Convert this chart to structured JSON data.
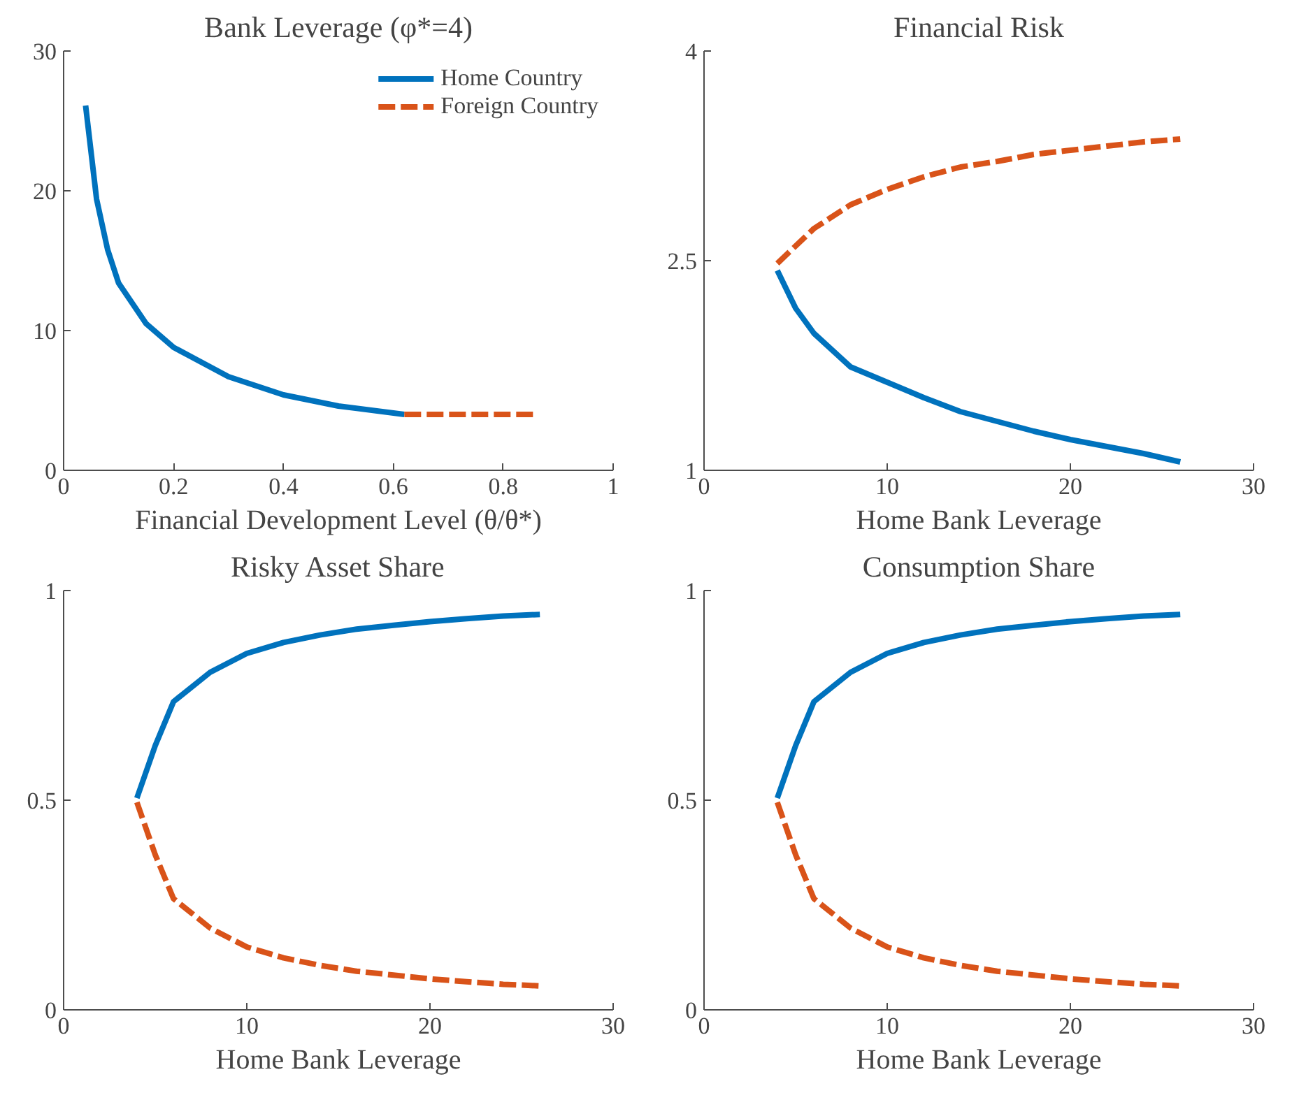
{
  "chart_data": [
    {
      "type": "line",
      "title": "Bank Leverage (φ*=4)",
      "xlabel": "Financial Development Level (θ/θ*)",
      "xlim": [
        0,
        1
      ],
      "xticks": [
        0,
        0.2,
        0.4,
        0.6,
        0.8,
        1
      ],
      "ylim": [
        0,
        30
      ],
      "yticks": [
        0,
        10,
        20,
        30
      ],
      "grid": false,
      "legend": "top right",
      "series": [
        {
          "name": "Home Country",
          "color": "#0072bd",
          "line_style": "solid",
          "x": [
            0.04,
            0.06,
            0.08,
            0.1,
            0.15,
            0.2,
            0.3,
            0.4,
            0.5,
            0.62
          ],
          "values": [
            26.1,
            19.4,
            15.8,
            13.4,
            10.5,
            8.8,
            6.7,
            5.4,
            4.6,
            4.0
          ]
        },
        {
          "name": "Foreign Country",
          "color": "#d95319",
          "line_style": "dashed",
          "x": [
            0.62,
            0.86
          ],
          "values": [
            4.0,
            4.0
          ]
        }
      ]
    },
    {
      "type": "line",
      "title": "Financial Risk",
      "xlabel": "Home Bank Leverage",
      "xlim": [
        0,
        30
      ],
      "xticks": [
        0,
        10,
        20,
        30
      ],
      "ylim": [
        1,
        4
      ],
      "yticks": [
        1,
        2.5,
        4
      ],
      "grid": false,
      "legend": false,
      "series": [
        {
          "color": "#0072bd",
          "line_style": "solid",
          "x": [
            4,
            5,
            6,
            8,
            10,
            12,
            14,
            16,
            18,
            20,
            22,
            24,
            26
          ],
          "values": [
            2.43,
            2.16,
            1.98,
            1.74,
            1.63,
            1.52,
            1.42,
            1.35,
            1.28,
            1.22,
            1.17,
            1.12,
            1.06
          ]
        },
        {
          "color": "#d95319",
          "line_style": "dashed",
          "x": [
            4,
            6,
            8,
            10,
            12,
            14,
            16,
            18,
            20,
            22,
            24,
            26
          ],
          "values": [
            2.48,
            2.73,
            2.9,
            3.01,
            3.1,
            3.17,
            3.21,
            3.26,
            3.29,
            3.32,
            3.35,
            3.37
          ]
        }
      ]
    },
    {
      "type": "line",
      "title": "Risky Asset Share",
      "xlabel": "Home Bank Leverage",
      "xlim": [
        0,
        30
      ],
      "xticks": [
        0,
        10,
        20,
        30
      ],
      "ylim": [
        0,
        1
      ],
      "yticks": [
        0,
        0.5,
        1
      ],
      "grid": false,
      "legend": false,
      "series": [
        {
          "color": "#0072bd",
          "line_style": "solid",
          "x": [
            4,
            5,
            6,
            8,
            10,
            12,
            14,
            16,
            18,
            20,
            22,
            24,
            26
          ],
          "values": [
            0.505,
            0.63,
            0.735,
            0.805,
            0.85,
            0.876,
            0.894,
            0.908,
            0.917,
            0.926,
            0.933,
            0.939,
            0.943
          ]
        },
        {
          "color": "#d95319",
          "line_style": "dashed",
          "x": [
            4,
            5,
            6,
            8,
            10,
            12,
            14,
            16,
            18,
            20,
            22,
            24,
            26
          ],
          "values": [
            0.495,
            0.37,
            0.265,
            0.195,
            0.15,
            0.124,
            0.106,
            0.092,
            0.083,
            0.074,
            0.067,
            0.061,
            0.057
          ]
        }
      ]
    },
    {
      "type": "line",
      "title": "Consumption Share",
      "xlabel": "Home Bank Leverage",
      "xlim": [
        0,
        30
      ],
      "xticks": [
        0,
        10,
        20,
        30
      ],
      "ylim": [
        0,
        1
      ],
      "yticks": [
        0,
        0.5,
        1
      ],
      "grid": false,
      "legend": false,
      "series": [
        {
          "color": "#0072bd",
          "line_style": "solid",
          "x": [
            4,
            5,
            6,
            8,
            10,
            12,
            14,
            16,
            18,
            20,
            22,
            24,
            26
          ],
          "values": [
            0.505,
            0.63,
            0.735,
            0.805,
            0.85,
            0.876,
            0.894,
            0.908,
            0.917,
            0.926,
            0.933,
            0.939,
            0.943
          ]
        },
        {
          "color": "#d95319",
          "line_style": "dashed",
          "x": [
            4,
            5,
            6,
            8,
            10,
            12,
            14,
            16,
            18,
            20,
            22,
            24,
            26
          ],
          "values": [
            0.495,
            0.37,
            0.265,
            0.195,
            0.15,
            0.124,
            0.106,
            0.092,
            0.083,
            0.074,
            0.067,
            0.061,
            0.057
          ]
        }
      ]
    }
  ]
}
